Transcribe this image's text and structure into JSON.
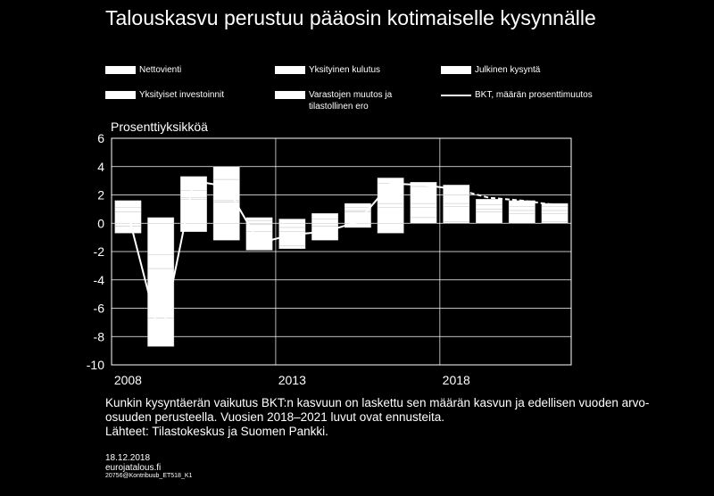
{
  "title": "Talouskasvu perustuu pääosin kotimaiselle kysynnälle",
  "legend": [
    {
      "label": "Nettovienti",
      "type": "bar"
    },
    {
      "label": "Yksityinen kulutus",
      "type": "bar"
    },
    {
      "label": "Julkinen kysyntä",
      "type": "bar"
    },
    {
      "label": "Yksityiset investoinnit",
      "type": "bar"
    },
    {
      "label": "Varastojen muutos ja tilastollinen ero",
      "type": "bar"
    },
    {
      "label": "BKT, määrän prosenttimuutos",
      "type": "line"
    }
  ],
  "notes": {
    "line1": "Kunkin kysyntäerän vaikutus BKT:n kasvuun on laskettu sen määrän kasvun ja edellisen vuoden arvo-osuuden perusteella. Vuosien 2018–2021 luvut ovat ennusteita.",
    "line2": "Lähteet: Tilastokeskus ja Suomen Pankki."
  },
  "footer": {
    "date": "18.12.2018",
    "site": "eurojatalous.fi",
    "code": "20756@Kontribuub_ET518_K1"
  },
  "chart_data": {
    "type": "bar",
    "stacked": true,
    "ylabel": "Prosenttiyksikköä",
    "ylim": [
      -10,
      6
    ],
    "yticks": [
      -10,
      -8,
      -6,
      -4,
      -2,
      0,
      2,
      4,
      6
    ],
    "x": [
      2008,
      2009,
      2010,
      2011,
      2012,
      2013,
      2014,
      2015,
      2016,
      2017,
      2018,
      2019,
      2020,
      2021
    ],
    "xtick_labels": [
      2008,
      2013,
      2018
    ],
    "forecast_from": 2018,
    "bar_color": "#ffffff",
    "grid": true,
    "series": [
      {
        "name": "Nettovienti",
        "values": [
          0.8,
          -2.2,
          -0.6,
          -1.2,
          0.2,
          -0.3,
          0.3,
          -0.3,
          -0.7,
          0.4,
          0.1,
          0.0,
          0.0,
          0.1
        ]
      },
      {
        "name": "Yksityinen kulutus",
        "values": [
          0.3,
          -1.0,
          1.7,
          1.5,
          0.2,
          -0.3,
          0.4,
          0.8,
          1.1,
          0.7,
          1.1,
          0.8,
          0.7,
          0.6
        ]
      },
      {
        "name": "Julkinen kysyntä",
        "values": [
          0.5,
          0.4,
          0.1,
          0.1,
          -0.1,
          0.3,
          -0.2,
          0.1,
          0.3,
          0.3,
          0.2,
          0.2,
          0.2,
          0.2
        ]
      },
      {
        "name": "Yksityiset investoinnit",
        "values": [
          -0.2,
          -3.5,
          0.5,
          1.5,
          -0.5,
          -1.0,
          -1.0,
          0.2,
          1.4,
          1.2,
          0.6,
          0.3,
          0.3,
          0.3
        ]
      },
      {
        "name": "Varastojen muutos ja tilastollinen ero",
        "values": [
          -0.5,
          -2.0,
          1.0,
          0.9,
          -1.3,
          -0.2,
          0.0,
          0.3,
          0.4,
          0.3,
          0.7,
          0.4,
          0.4,
          0.2
        ]
      },
      {
        "name": "BKT, määrän prosenttimuutos",
        "type": "line",
        "values": [
          0.7,
          -8.3,
          3.0,
          2.6,
          -1.4,
          -0.8,
          -0.6,
          0.1,
          2.8,
          2.7,
          2.4,
          1.8,
          1.6,
          1.3
        ]
      }
    ]
  }
}
